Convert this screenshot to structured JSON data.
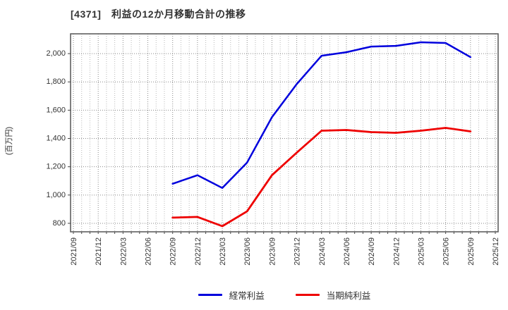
{
  "chart_data": {
    "type": "line",
    "title": "[4371]　利益の12か月移動合計の推移",
    "ylabel": "(百万円)",
    "x_labels": [
      "2021/09",
      "2021/12",
      "2022/03",
      "2022/06",
      "2022/09",
      "2022/12",
      "2023/03",
      "2023/06",
      "2023/09",
      "2023/12",
      "2024/03",
      "2024/06",
      "2024/09",
      "2024/12",
      "2025/03",
      "2025/06",
      "2025/09",
      "2025/12"
    ],
    "y_tick_values": [
      800,
      1000,
      1200,
      1400,
      1600,
      1800,
      2000
    ],
    "y_tick_labels": [
      "800",
      "1,000",
      "1,200",
      "1,400",
      "1,600",
      "1,800",
      "2,000"
    ],
    "ylim": [
      740,
      2140
    ],
    "grid": true,
    "legend_position": "bottom",
    "x_minor_per_interval": 2,
    "series": [
      {
        "name": "経常利益",
        "key": "ordinary-profit",
        "color": "#0000dd",
        "start_index": 4,
        "values": [
          1080,
          1140,
          1050,
          1230,
          1550,
          1785,
          1985,
          2010,
          2050,
          2055,
          2080,
          2075,
          1975
        ]
      },
      {
        "name": "当期純利益",
        "key": "net-income",
        "color": "#ee0000",
        "start_index": 4,
        "values": [
          840,
          845,
          780,
          885,
          1140,
          1300,
          1455,
          1460,
          1445,
          1440,
          1455,
          1475,
          1450
        ]
      }
    ]
  }
}
